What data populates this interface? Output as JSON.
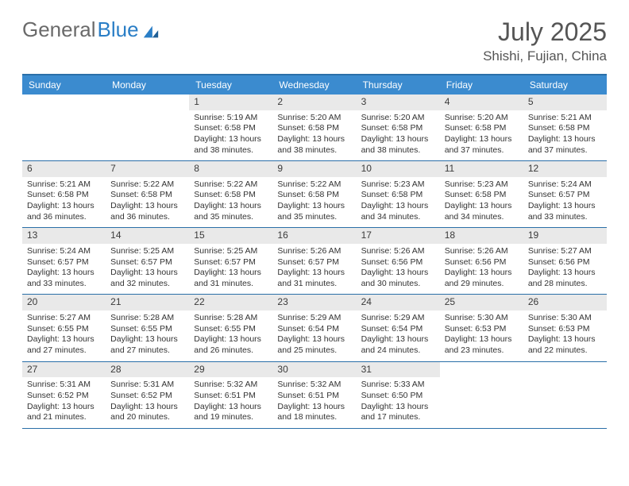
{
  "brand": {
    "part1": "General",
    "part2": "Blue"
  },
  "title": "July 2025",
  "location": "Shishi, Fujian, China",
  "colors": {
    "header_bg": "#3b8bcf",
    "rule": "#2a6fa8",
    "daynum_bg": "#e9e9e9",
    "text": "#333333",
    "title_text": "#555555"
  },
  "dow": [
    "Sunday",
    "Monday",
    "Tuesday",
    "Wednesday",
    "Thursday",
    "Friday",
    "Saturday"
  ],
  "weeks": [
    [
      {
        "n": "",
        "sr": "",
        "ss": "",
        "dl": "",
        "empty": true
      },
      {
        "n": "",
        "sr": "",
        "ss": "",
        "dl": "",
        "empty": true
      },
      {
        "n": "1",
        "sr": "Sunrise: 5:19 AM",
        "ss": "Sunset: 6:58 PM",
        "dl": "Daylight: 13 hours and 38 minutes."
      },
      {
        "n": "2",
        "sr": "Sunrise: 5:20 AM",
        "ss": "Sunset: 6:58 PM",
        "dl": "Daylight: 13 hours and 38 minutes."
      },
      {
        "n": "3",
        "sr": "Sunrise: 5:20 AM",
        "ss": "Sunset: 6:58 PM",
        "dl": "Daylight: 13 hours and 38 minutes."
      },
      {
        "n": "4",
        "sr": "Sunrise: 5:20 AM",
        "ss": "Sunset: 6:58 PM",
        "dl": "Daylight: 13 hours and 37 minutes."
      },
      {
        "n": "5",
        "sr": "Sunrise: 5:21 AM",
        "ss": "Sunset: 6:58 PM",
        "dl": "Daylight: 13 hours and 37 minutes."
      }
    ],
    [
      {
        "n": "6",
        "sr": "Sunrise: 5:21 AM",
        "ss": "Sunset: 6:58 PM",
        "dl": "Daylight: 13 hours and 36 minutes."
      },
      {
        "n": "7",
        "sr": "Sunrise: 5:22 AM",
        "ss": "Sunset: 6:58 PM",
        "dl": "Daylight: 13 hours and 36 minutes."
      },
      {
        "n": "8",
        "sr": "Sunrise: 5:22 AM",
        "ss": "Sunset: 6:58 PM",
        "dl": "Daylight: 13 hours and 35 minutes."
      },
      {
        "n": "9",
        "sr": "Sunrise: 5:22 AM",
        "ss": "Sunset: 6:58 PM",
        "dl": "Daylight: 13 hours and 35 minutes."
      },
      {
        "n": "10",
        "sr": "Sunrise: 5:23 AM",
        "ss": "Sunset: 6:58 PM",
        "dl": "Daylight: 13 hours and 34 minutes."
      },
      {
        "n": "11",
        "sr": "Sunrise: 5:23 AM",
        "ss": "Sunset: 6:58 PM",
        "dl": "Daylight: 13 hours and 34 minutes."
      },
      {
        "n": "12",
        "sr": "Sunrise: 5:24 AM",
        "ss": "Sunset: 6:57 PM",
        "dl": "Daylight: 13 hours and 33 minutes."
      }
    ],
    [
      {
        "n": "13",
        "sr": "Sunrise: 5:24 AM",
        "ss": "Sunset: 6:57 PM",
        "dl": "Daylight: 13 hours and 33 minutes."
      },
      {
        "n": "14",
        "sr": "Sunrise: 5:25 AM",
        "ss": "Sunset: 6:57 PM",
        "dl": "Daylight: 13 hours and 32 minutes."
      },
      {
        "n": "15",
        "sr": "Sunrise: 5:25 AM",
        "ss": "Sunset: 6:57 PM",
        "dl": "Daylight: 13 hours and 31 minutes."
      },
      {
        "n": "16",
        "sr": "Sunrise: 5:26 AM",
        "ss": "Sunset: 6:57 PM",
        "dl": "Daylight: 13 hours and 31 minutes."
      },
      {
        "n": "17",
        "sr": "Sunrise: 5:26 AM",
        "ss": "Sunset: 6:56 PM",
        "dl": "Daylight: 13 hours and 30 minutes."
      },
      {
        "n": "18",
        "sr": "Sunrise: 5:26 AM",
        "ss": "Sunset: 6:56 PM",
        "dl": "Daylight: 13 hours and 29 minutes."
      },
      {
        "n": "19",
        "sr": "Sunrise: 5:27 AM",
        "ss": "Sunset: 6:56 PM",
        "dl": "Daylight: 13 hours and 28 minutes."
      }
    ],
    [
      {
        "n": "20",
        "sr": "Sunrise: 5:27 AM",
        "ss": "Sunset: 6:55 PM",
        "dl": "Daylight: 13 hours and 27 minutes."
      },
      {
        "n": "21",
        "sr": "Sunrise: 5:28 AM",
        "ss": "Sunset: 6:55 PM",
        "dl": "Daylight: 13 hours and 27 minutes."
      },
      {
        "n": "22",
        "sr": "Sunrise: 5:28 AM",
        "ss": "Sunset: 6:55 PM",
        "dl": "Daylight: 13 hours and 26 minutes."
      },
      {
        "n": "23",
        "sr": "Sunrise: 5:29 AM",
        "ss": "Sunset: 6:54 PM",
        "dl": "Daylight: 13 hours and 25 minutes."
      },
      {
        "n": "24",
        "sr": "Sunrise: 5:29 AM",
        "ss": "Sunset: 6:54 PM",
        "dl": "Daylight: 13 hours and 24 minutes."
      },
      {
        "n": "25",
        "sr": "Sunrise: 5:30 AM",
        "ss": "Sunset: 6:53 PM",
        "dl": "Daylight: 13 hours and 23 minutes."
      },
      {
        "n": "26",
        "sr": "Sunrise: 5:30 AM",
        "ss": "Sunset: 6:53 PM",
        "dl": "Daylight: 13 hours and 22 minutes."
      }
    ],
    [
      {
        "n": "27",
        "sr": "Sunrise: 5:31 AM",
        "ss": "Sunset: 6:52 PM",
        "dl": "Daylight: 13 hours and 21 minutes."
      },
      {
        "n": "28",
        "sr": "Sunrise: 5:31 AM",
        "ss": "Sunset: 6:52 PM",
        "dl": "Daylight: 13 hours and 20 minutes."
      },
      {
        "n": "29",
        "sr": "Sunrise: 5:32 AM",
        "ss": "Sunset: 6:51 PM",
        "dl": "Daylight: 13 hours and 19 minutes."
      },
      {
        "n": "30",
        "sr": "Sunrise: 5:32 AM",
        "ss": "Sunset: 6:51 PM",
        "dl": "Daylight: 13 hours and 18 minutes."
      },
      {
        "n": "31",
        "sr": "Sunrise: 5:33 AM",
        "ss": "Sunset: 6:50 PM",
        "dl": "Daylight: 13 hours and 17 minutes."
      },
      {
        "n": "",
        "sr": "",
        "ss": "",
        "dl": "",
        "empty": true
      },
      {
        "n": "",
        "sr": "",
        "ss": "",
        "dl": "",
        "empty": true
      }
    ]
  ]
}
